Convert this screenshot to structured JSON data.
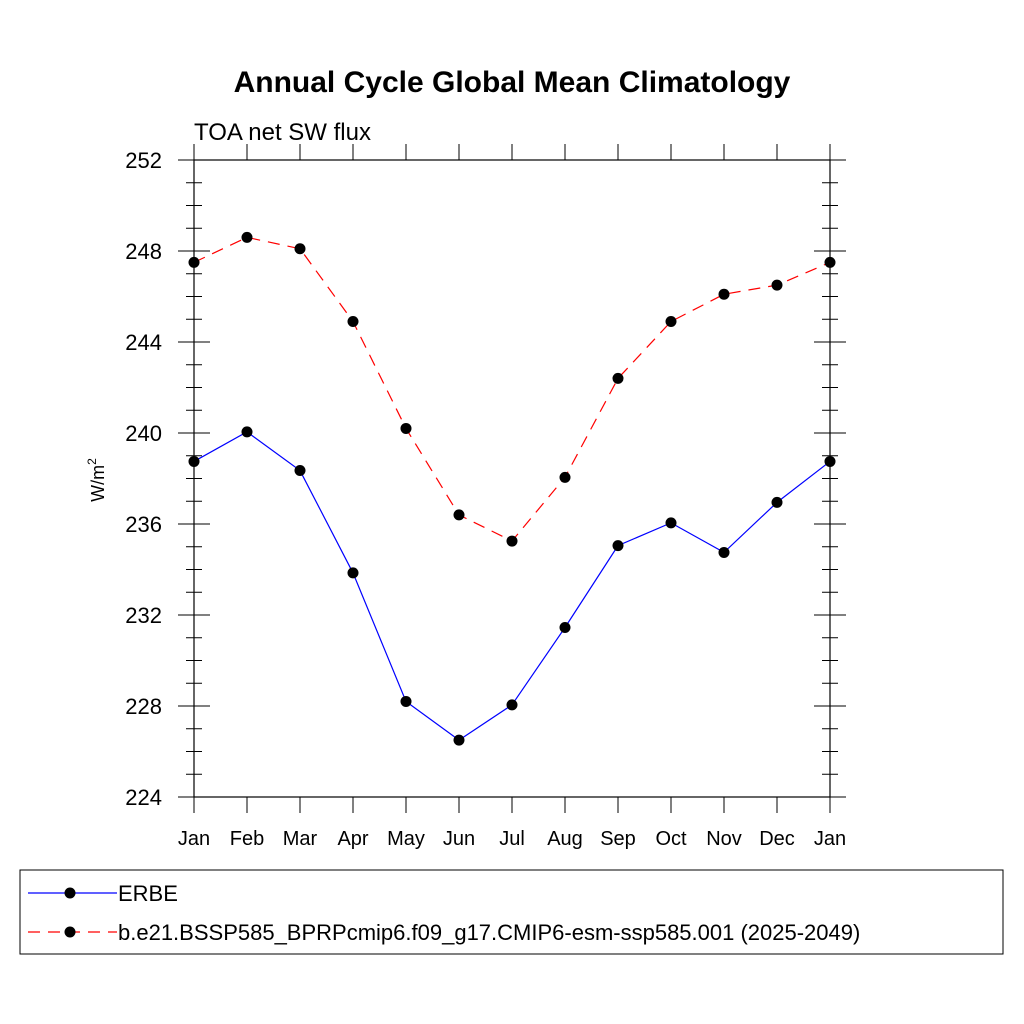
{
  "chart_data": {
    "type": "line",
    "title": "Annual Cycle Global Mean Climatology",
    "subtitle": "TOA net SW flux",
    "xlabel": "",
    "ylabel": "W/m",
    "ylabel_superscript": "2",
    "ylim": [
      224,
      252
    ],
    "yticks": [
      "224",
      "228",
      "232",
      "236",
      "240",
      "244",
      "248",
      "252"
    ],
    "categories": [
      "Jan",
      "Feb",
      "Mar",
      "Apr",
      "May",
      "Jun",
      "Jul",
      "Aug",
      "Sep",
      "Oct",
      "Nov",
      "Dec",
      "Jan"
    ],
    "grid": false,
    "legend_position": "bottom",
    "series": [
      {
        "name": "ERBE",
        "color": "#0000ff",
        "dash": "solid",
        "marker": "filled-circle",
        "values": [
          238.75,
          240.05,
          238.35,
          233.85,
          228.2,
          226.5,
          228.05,
          231.45,
          235.05,
          236.05,
          234.75,
          236.95,
          238.75
        ]
      },
      {
        "name": "b.e21.BSSP585_BPRPcmip6.f09_g17.CMIP6-esm-ssp585.001 (2025-2049)",
        "color": "#ff0000",
        "dash": "dashed",
        "marker": "filled-circle",
        "values": [
          247.5,
          248.6,
          248.1,
          244.9,
          240.2,
          236.4,
          235.25,
          238.05,
          242.4,
          244.9,
          246.1,
          246.5,
          247.5
        ]
      }
    ]
  }
}
